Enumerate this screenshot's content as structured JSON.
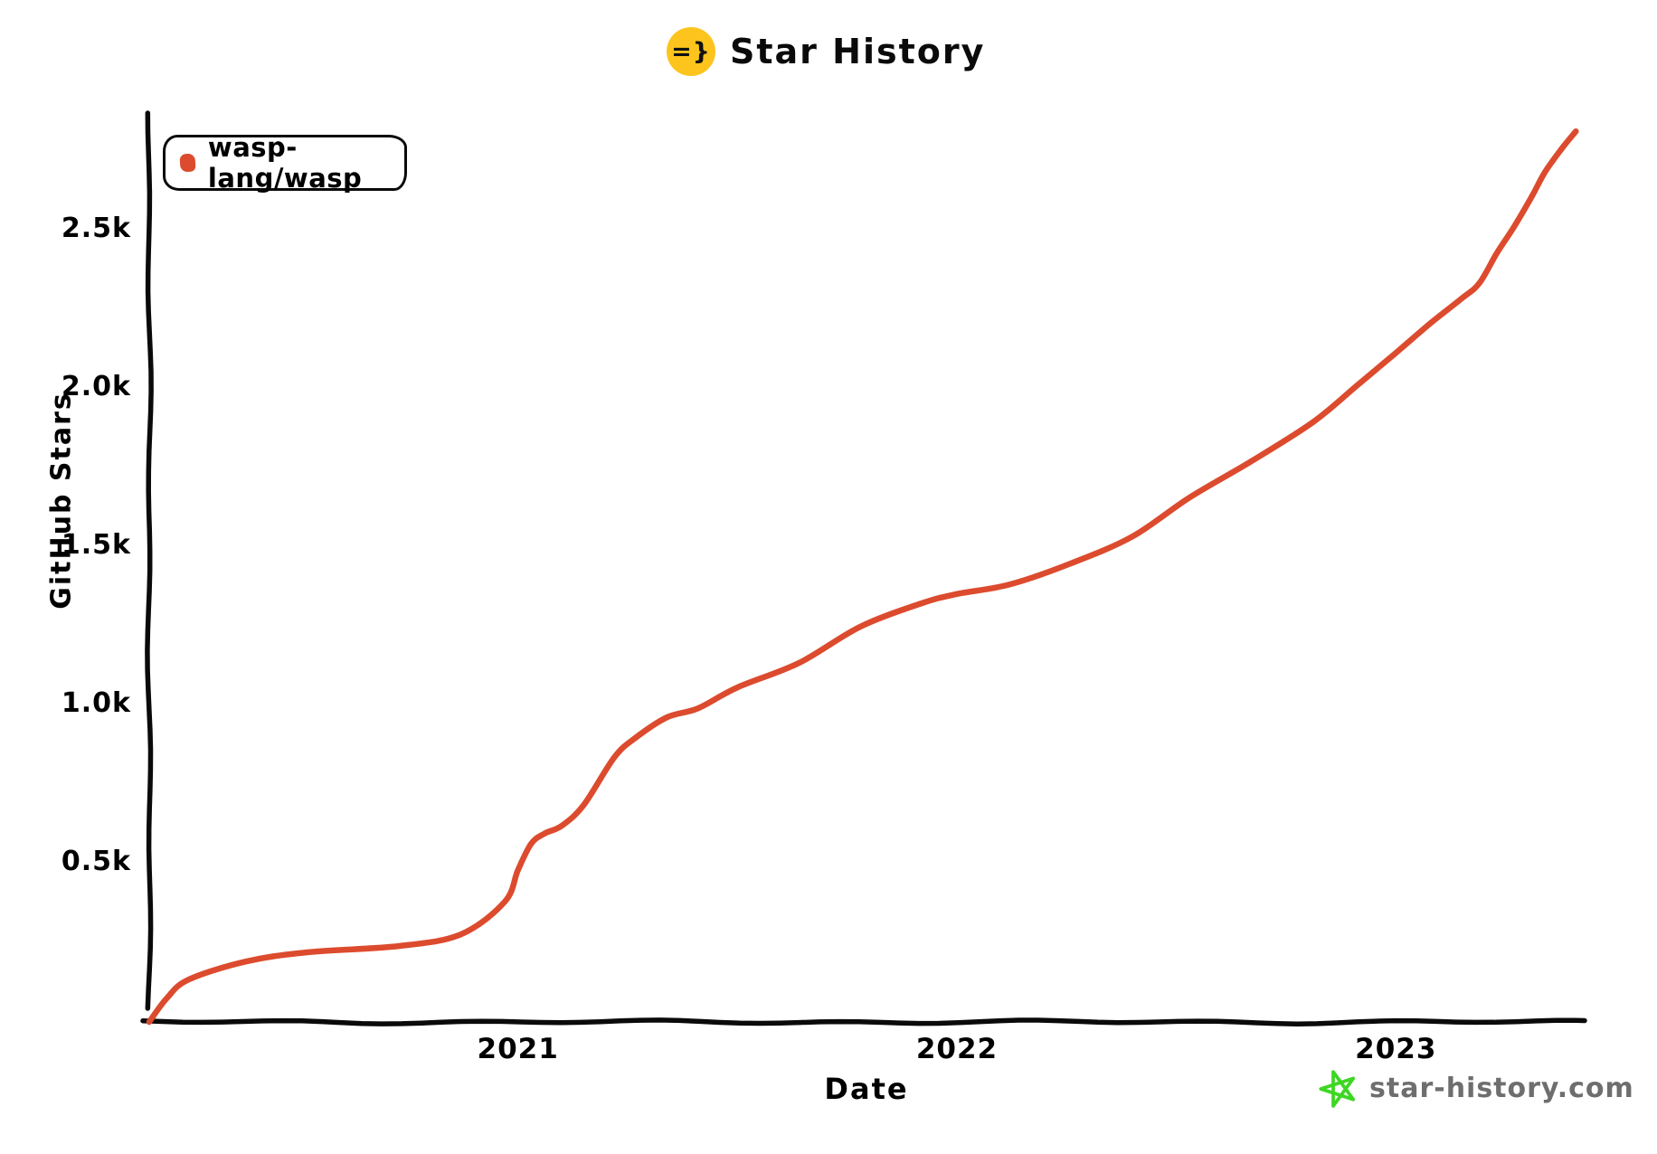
{
  "title": {
    "text": "Star History",
    "icon_text": "=}",
    "icon_bg": "#FCC41D"
  },
  "legend": {
    "series_label": "wasp-lang/wasp",
    "marker_color": "#DC4B2E"
  },
  "watermark": {
    "text": "star-history.com",
    "star_color": "#3DD723",
    "text_color": "#6E6E6E"
  },
  "chart_data": {
    "type": "line",
    "title": "Star History",
    "xlabel": "Date",
    "ylabel": "GitHub Stars",
    "grid": false,
    "legend_position": "top-left",
    "xlim": [
      2020.16,
      2023.43
    ],
    "ylim": [
      0,
      2886
    ],
    "x_ticks": [
      {
        "value": 2021,
        "label": "2021"
      },
      {
        "value": 2022,
        "label": "2022"
      },
      {
        "value": 2023,
        "label": "2023"
      }
    ],
    "y_ticks": [
      {
        "value": 500,
        "label": "0.5k"
      },
      {
        "value": 1000,
        "label": "1.0k"
      },
      {
        "value": 1500,
        "label": "1.5k"
      },
      {
        "value": 2000,
        "label": "2.0k"
      },
      {
        "value": 2500,
        "label": "2.5k"
      }
    ],
    "series": [
      {
        "name": "wasp-lang/wasp",
        "color": "#DC4B2E",
        "x_unit": "decimal_year",
        "y_unit": "stars",
        "points": [
          [
            2020.16,
            0
          ],
          [
            2020.2,
            75
          ],
          [
            2020.25,
            134
          ],
          [
            2020.38,
            191
          ],
          [
            2020.52,
            220
          ],
          [
            2020.73,
            240
          ],
          [
            2020.87,
            277
          ],
          [
            2020.97,
            380
          ],
          [
            2021.0,
            480
          ],
          [
            2021.03,
            563
          ],
          [
            2021.06,
            595
          ],
          [
            2021.1,
            620
          ],
          [
            2021.15,
            686
          ],
          [
            2021.22,
            837
          ],
          [
            2021.27,
            900
          ],
          [
            2021.34,
            963
          ],
          [
            2021.41,
            991
          ],
          [
            2021.5,
            1057
          ],
          [
            2021.64,
            1134
          ],
          [
            2021.78,
            1249
          ],
          [
            2021.92,
            1323
          ],
          [
            2022.0,
            1352
          ],
          [
            2022.12,
            1382
          ],
          [
            2022.26,
            1449
          ],
          [
            2022.4,
            1534
          ],
          [
            2022.53,
            1657
          ],
          [
            2022.67,
            1771
          ],
          [
            2022.81,
            1894
          ],
          [
            2022.91,
            2009
          ],
          [
            2023.0,
            2114
          ],
          [
            2023.08,
            2209
          ],
          [
            2023.15,
            2286
          ],
          [
            2023.19,
            2334
          ],
          [
            2023.23,
            2429
          ],
          [
            2023.27,
            2514
          ],
          [
            2023.31,
            2609
          ],
          [
            2023.34,
            2686
          ],
          [
            2023.38,
            2763
          ],
          [
            2023.41,
            2814
          ]
        ]
      }
    ]
  }
}
